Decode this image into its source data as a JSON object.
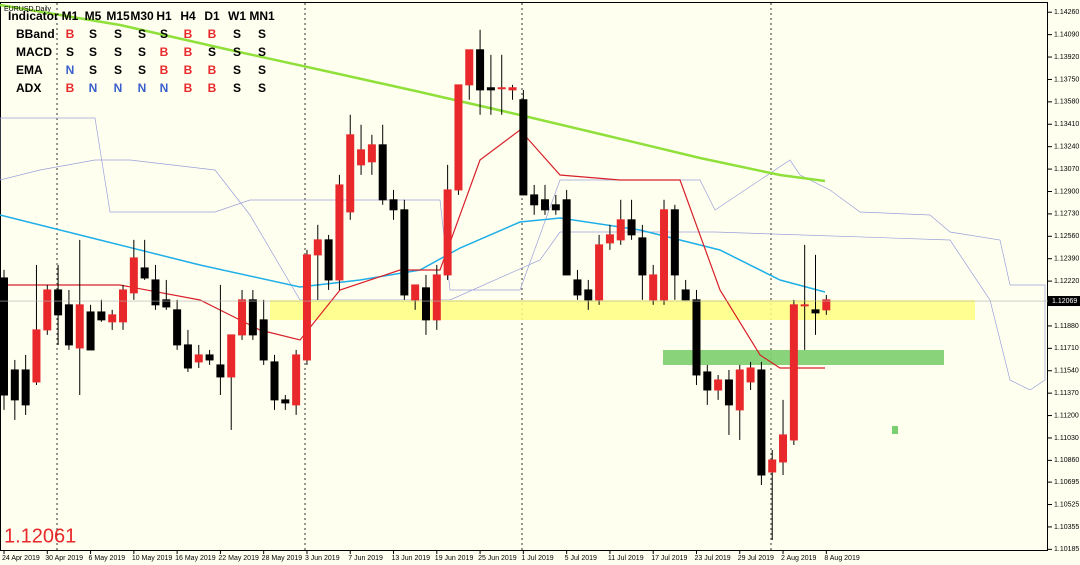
{
  "chart_data": {
    "type": "candlestick",
    "title": "EURUSD,Daily",
    "categories": [
      "24 Apr 2019",
      null,
      null,
      null,
      "30 Apr 2019",
      null,
      null,
      null,
      "6 May 2019",
      null,
      null,
      null,
      "10 May 2019",
      null,
      null,
      null,
      "16 May 2019",
      null,
      null,
      null,
      "22 May 2019",
      null,
      null,
      null,
      "28 May 2019",
      null,
      null,
      null,
      "3 Jun 2019",
      null,
      null,
      null,
      "7 Jun 2019",
      null,
      null,
      null,
      "13 Jun 2019",
      null,
      null,
      null,
      "19 Jun 2019",
      null,
      null,
      null,
      "25 Jun 2019",
      null,
      null,
      null,
      "1 Jul 2019",
      null,
      null,
      null,
      "5 Jul 2019",
      null,
      null,
      null,
      "11 Jul 2019",
      null,
      null,
      null,
      "17 Jul 2019",
      null,
      null,
      null,
      "23 Jul 2019",
      null,
      null,
      null,
      "29 Jul 2019",
      null,
      null,
      null,
      "2 Aug 2019",
      null,
      null,
      null,
      "8 Aug 2019"
    ],
    "open": [
      1.12244,
      1.11546,
      1.11546,
      1.11455,
      1.1185,
      1.12153,
      1.1204,
      1.11713,
      1.11986,
      1.11986,
      1.11911,
      1.11911,
      1.12131,
      1.1232,
      1.12229,
      1.12078,
      1.12002,
      1.11736,
      1.11607,
      1.1166,
      1.11584,
      1.11493,
      1.11812,
      1.12078,
      1.11926,
      1.11607,
      1.11319,
      1.11281,
      1.11622,
      1.12419,
      1.12533,
      1.12229,
      1.12745,
      1.13102,
      1.13125,
      1.13254,
      1.12837,
      1.12761,
      1.12078,
      1.12169,
      1.11926,
      1.12267,
      1.12912,
      1.13709,
      1.13975,
      1.13687,
      1.13687,
      1.13671,
      1.13596,
      1.12874,
      1.12837,
      1.12799,
      1.12837,
      1.12229,
      1.12153,
      1.12078,
      1.1251,
      1.12533,
      1.12685,
      1.12548,
      1.12078,
      1.12078,
      1.12761,
      1.12153,
      1.12078,
      1.11531,
      1.11394,
      1.1147,
      1.11243,
      1.11455,
      1.11546,
      1.10772,
      1.10848,
      1.11015,
      1.1204,
      1.12002,
      1.12002
    ],
    "high": [
      1.12305,
      1.11622,
      1.1166,
      1.12343,
      1.12191,
      1.12343,
      1.12153,
      1.12533,
      1.1204,
      1.12078,
      1.12002,
      1.12191,
      1.12533,
      1.12533,
      1.12343,
      1.12229,
      1.12078,
      1.1185,
      1.11736,
      1.11698,
      1.12191,
      1.11812,
      1.12153,
      1.12153,
      1.12078,
      1.1166,
      1.11356,
      1.11698,
      1.12457,
      1.12647,
      1.12571,
      1.13026,
      1.13482,
      1.13406,
      1.1333,
      1.13406,
      1.12912,
      1.12837,
      1.12191,
      1.12267,
      1.12343,
      1.13102,
      1.13709,
      1.13975,
      1.14127,
      1.13937,
      1.13937,
      1.13709,
      1.13671,
      1.1295,
      1.1295,
      1.12874,
      1.12912,
      1.12305,
      1.12229,
      1.12571,
      1.12647,
      1.12837,
      1.12837,
      1.12647,
      1.12343,
      1.12837,
      1.12799,
      1.12229,
      1.12153,
      1.11584,
      1.11508,
      1.11546,
      1.11584,
      1.11607,
      1.11607,
      1.10939,
      1.11319,
      1.12078,
      1.12495,
      1.12419,
      1.12115
    ],
    "low": [
      1.11243,
      1.11167,
      1.11205,
      1.11432,
      1.11812,
      1.11736,
      1.11698,
      1.11356,
      1.11698,
      1.11911,
      1.1185,
      1.1185,
      1.12078,
      1.12229,
      1.12002,
      1.12002,
      1.11698,
      1.11531,
      1.11561,
      1.11584,
      1.11356,
      1.11091,
      1.11774,
      1.11774,
      1.11584,
      1.11243,
      1.11243,
      1.11205,
      1.11584,
      1.12078,
      1.12153,
      1.12153,
      1.12685,
      1.13026,
      1.13026,
      1.12799,
      1.12685,
      1.12078,
      1.12002,
      1.11812,
      1.1185,
      1.12229,
      1.12874,
      1.13596,
      1.13482,
      1.13482,
      1.13482,
      1.13596,
      1.12874,
      1.12723,
      1.12723,
      1.12723,
      1.12267,
      1.12078,
      1.12002,
      1.1204,
      1.12457,
      1.12495,
      1.12533,
      1.12078,
      1.1204,
      1.1204,
      1.12078,
      1.12078,
      1.11432,
      1.11281,
      1.11319,
      1.11053,
      1.11015,
      1.11394,
      1.10673,
      1.10256,
      1.10749,
      1.10977,
      1.11698,
      1.11812,
      1.11964
    ],
    "close": [
      1.11356,
      1.11319,
      1.11281,
      1.1185,
      1.12153,
      1.11964,
      1.11736,
      1.1204,
      1.11698,
      1.11926,
      1.11964,
      1.12153,
      1.12396,
      1.12244,
      1.1204,
      1.12024,
      1.11736,
      1.11561,
      1.1166,
      1.11622,
      1.11493,
      1.11812,
      1.12078,
      1.11812,
      1.11622,
      1.11319,
      1.11296,
      1.1166,
      1.12419,
      1.12533,
      1.12229,
      1.1295,
      1.1333,
      1.13216,
      1.13254,
      1.12837,
      1.12761,
      1.12115,
      1.12191,
      1.11926,
      1.12267,
      1.12912,
      1.13709,
      1.13975,
      1.13671,
      1.13671,
      1.13687,
      1.13687,
      1.12874,
      1.12799,
      1.12761,
      1.12761,
      1.12267,
      1.12115,
      1.12078,
      1.12495,
      1.12571,
      1.12685,
      1.12571,
      1.12267,
      1.12267,
      1.12761,
      1.12267,
      1.12078,
      1.11508,
      1.11394,
      1.1147,
      1.11281,
      1.11546,
      1.11561,
      1.10749,
      1.10863,
      1.11053,
      1.1204,
      1.1204,
      1.11979,
      1.12078
    ],
    "up_color": "#e8282b",
    "down_color": "#000000",
    "ylim": [
      1.1018,
      1.1433
    ],
    "yticks": [
      {
        "value": 1.1426,
        "label": "1.14260"
      },
      {
        "value": 1.1409,
        "label": "1.14090"
      },
      {
        "value": 1.1392,
        "label": "1.13920"
      },
      {
        "value": 1.1375,
        "label": "1.13750"
      },
      {
        "value": 1.1358,
        "label": "1.13580"
      },
      {
        "value": 1.1341,
        "label": "1.13410"
      },
      {
        "value": 1.1324,
        "label": "1.13240"
      },
      {
        "value": 1.1307,
        "label": "1.13070"
      },
      {
        "value": 1.129,
        "label": "1.12900"
      },
      {
        "value": 1.1273,
        "label": "1.12730"
      },
      {
        "value": 1.1256,
        "label": "1.12560"
      },
      {
        "value": 1.1239,
        "label": "1.12390"
      },
      {
        "value": 1.1222,
        "label": "1.12220"
      },
      {
        "value": 1.1188,
        "label": "1.11880"
      },
      {
        "value": 1.1171,
        "label": "1.11710"
      },
      {
        "value": 1.1154,
        "label": "1.11540"
      },
      {
        "value": 1.1137,
        "label": "1.11370"
      },
      {
        "value": 1.112,
        "label": "1.11200"
      },
      {
        "value": 1.1103,
        "label": "1.11030"
      },
      {
        "value": 1.1086,
        "label": "1.10860"
      },
      {
        "value": 1.10695,
        "label": "1.10695"
      },
      {
        "value": 1.10525,
        "label": "1.10525"
      },
      {
        "value": 1.10355,
        "label": "1.10355"
      },
      {
        "value": 1.10185,
        "label": "1.10185"
      }
    ],
    "current_price": 1.12069,
    "last_price": 1.12061,
    "grid": false
  },
  "indicator_table": {
    "columns": [
      "Indicator",
      "M1",
      "M5",
      "M15",
      "M30",
      "H1",
      "H4",
      "D1",
      "W1",
      "MN1"
    ],
    "rows": [
      {
        "name": "BBand",
        "signals": [
          "B",
          "S",
          "S",
          "S",
          "S",
          "B",
          "B",
          "S",
          "S"
        ]
      },
      {
        "name": "MACD",
        "signals": [
          "S",
          "S",
          "S",
          "S",
          "B",
          "B",
          "S",
          "S",
          "S"
        ]
      },
      {
        "name": "EMA",
        "signals": [
          "N",
          "S",
          "S",
          "S",
          "B",
          "B",
          "B",
          "S",
          "S"
        ]
      },
      {
        "name": "ADX",
        "signals": [
          "B",
          "N",
          "N",
          "N",
          "N",
          "B",
          "B",
          "S",
          "S"
        ]
      }
    ],
    "signal_colors": {
      "B": "#e8282b",
      "S": "#000000",
      "N": "#3a5fcd"
    }
  }
}
